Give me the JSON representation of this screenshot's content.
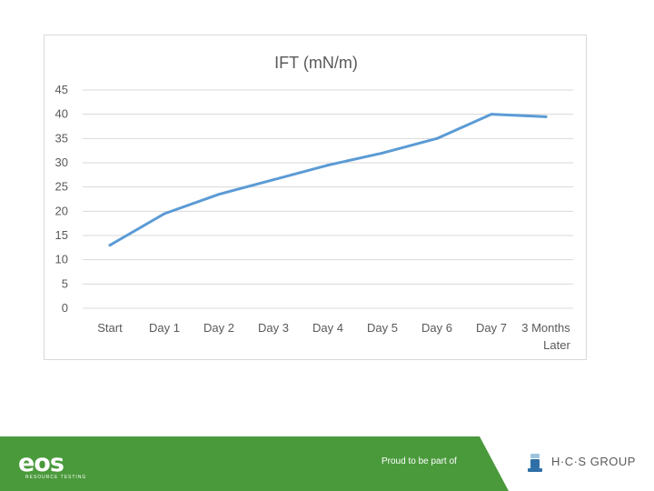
{
  "chart_data": {
    "type": "line",
    "title": "IFT (mN/m)",
    "categories": [
      "Start",
      "Day 1",
      "Day 2",
      "Day 3",
      "Day 4",
      "Day 5",
      "Day 6",
      "Day 7",
      "3 Months Later"
    ],
    "series": [
      {
        "name": "IFT",
        "values": [
          13,
          19.5,
          23.5,
          26.5,
          29.5,
          32,
          35,
          40,
          39.5
        ]
      }
    ],
    "yticks": [
      0,
      5,
      10,
      15,
      20,
      25,
      30,
      35,
      40,
      45
    ],
    "ylim": [
      0,
      45
    ],
    "xlabel": "",
    "ylabel": "",
    "grid": true,
    "line_color": "#5b9bd5"
  },
  "footer": {
    "brand": "eos",
    "brand_tagline": "RESOURCE TESTING",
    "proud_text": "Proud to be part of",
    "group_name": "H·C·S GROUP",
    "bar_color": "#4a9a3c"
  }
}
